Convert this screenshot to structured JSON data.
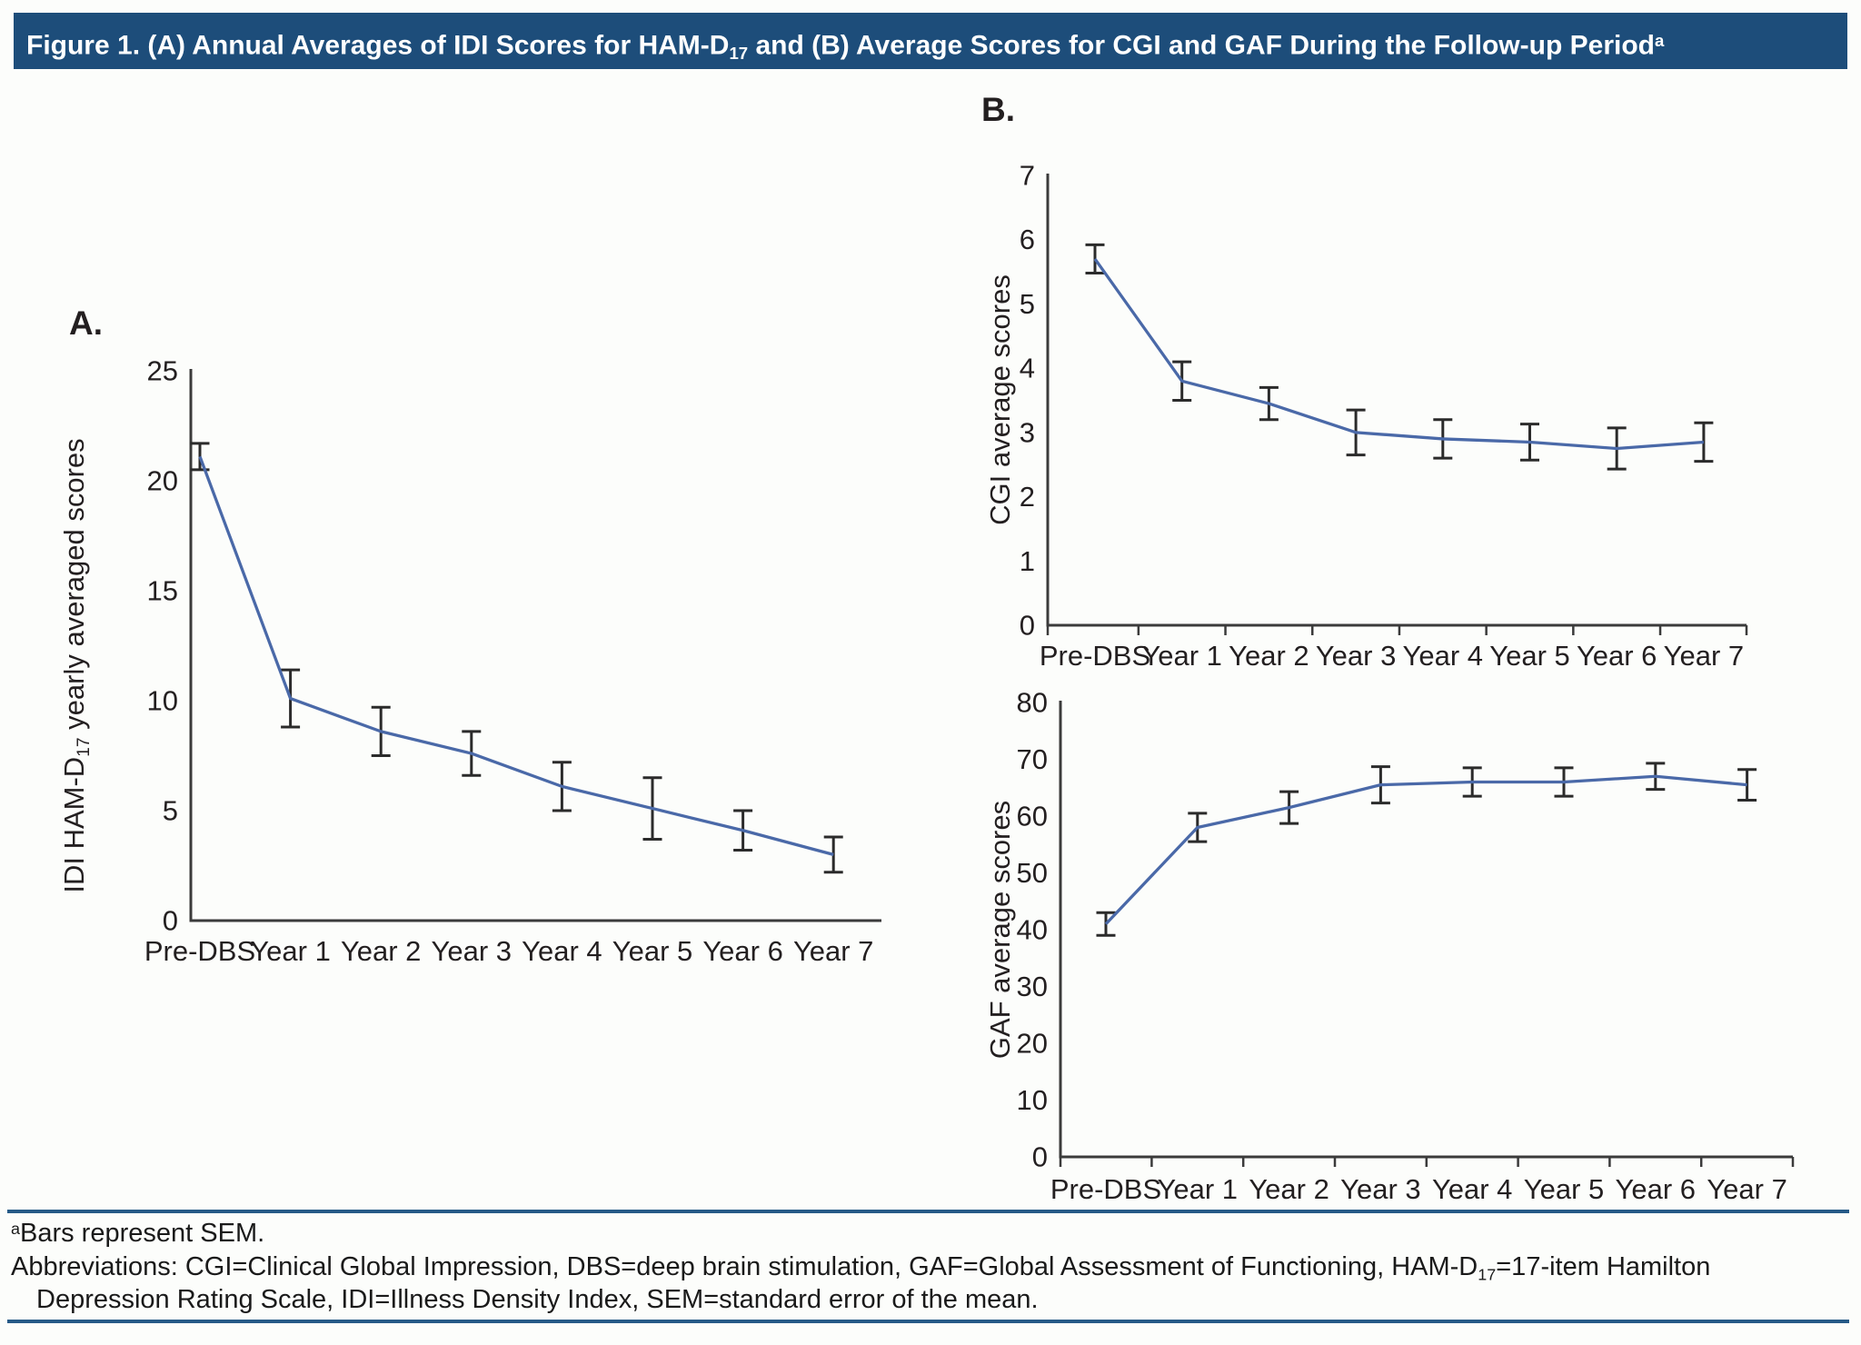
{
  "title": {
    "p1": "Figure 1. (A) Annual Averages of IDI Scores for HAM-D",
    "sub1": "17",
    "p2": " and (B) Average Scores for CGI and GAF During the Follow-up Period",
    "sup1": "a"
  },
  "panels": {
    "a_label": "A.",
    "b_label": "B."
  },
  "colors": {
    "header_bg": "#1d4d7a",
    "separator": "#265a87",
    "line": "#4a69a8",
    "error_bar": "#2b2b2b",
    "axis": "#3b3b3b"
  },
  "chart_data": [
    {
      "id": "ham-d17",
      "panel": "A",
      "type": "line",
      "ylabel_parts": {
        "p1": "IDI HAM-D",
        "sub": "17",
        "p2": " yearly averaged scores"
      },
      "categories": [
        "Pre-DBS",
        "Year 1",
        "Year 2",
        "Year 3",
        "Year 4",
        "Year 5",
        "Year 6",
        "Year 7"
      ],
      "values": [
        21.1,
        10.1,
        8.6,
        7.6,
        6.1,
        5.1,
        4.1,
        3.0
      ],
      "sem": [
        0.6,
        1.3,
        1.1,
        1.0,
        1.1,
        1.4,
        0.9,
        0.8
      ],
      "ylim": [
        0,
        25
      ],
      "yticks": [
        0,
        5,
        10,
        15,
        20,
        25
      ],
      "grid": false,
      "legend": null,
      "error_bars_represent": "SEM"
    },
    {
      "id": "cgi",
      "panel": "B",
      "type": "line",
      "ylabel": "CGI average scores",
      "categories": [
        "Pre-DBS",
        "Year 1",
        "Year 2",
        "Year 3",
        "Year 4",
        "Year 5",
        "Year 6",
        "Year 7"
      ],
      "values": [
        5.7,
        3.8,
        3.45,
        3.0,
        2.9,
        2.85,
        2.75,
        2.85
      ],
      "sem": [
        0.22,
        0.3,
        0.25,
        0.35,
        0.3,
        0.28,
        0.32,
        0.3
      ],
      "ylim": [
        0,
        7
      ],
      "yticks": [
        0,
        1,
        2,
        3,
        4,
        5,
        6,
        7
      ],
      "grid": false,
      "legend": null,
      "error_bars_represent": "SEM"
    },
    {
      "id": "gaf",
      "panel": "B",
      "type": "line",
      "ylabel": "GAF average scores",
      "categories": [
        "Pre-DBS",
        "Year 1",
        "Year 2",
        "Year 3",
        "Year 4",
        "Year 5",
        "Year 6",
        "Year 7"
      ],
      "values": [
        41,
        58,
        61.5,
        65.5,
        66,
        66,
        67,
        65.5
      ],
      "sem": [
        2.0,
        2.5,
        2.8,
        3.2,
        2.5,
        2.5,
        2.3,
        2.7
      ],
      "ylim": [
        0,
        80
      ],
      "yticks": [
        0,
        10,
        20,
        30,
        40,
        50,
        60,
        70,
        80
      ],
      "grid": false,
      "legend": null,
      "error_bars_represent": "SEM"
    }
  ],
  "footnotes": {
    "line1_sup": "a",
    "line1": "Bars represent SEM.",
    "line2_p1": "Abbreviations: CGI=Clinical Global Impression, DBS=deep brain stimulation, GAF=Global Assessment of Functioning, HAM-D",
    "line2_sub": "17",
    "line2_p2": "=17-item Hamilton",
    "line3": "Depression Rating Scale, IDI=Illness Density Index, SEM=standard error of the mean."
  }
}
